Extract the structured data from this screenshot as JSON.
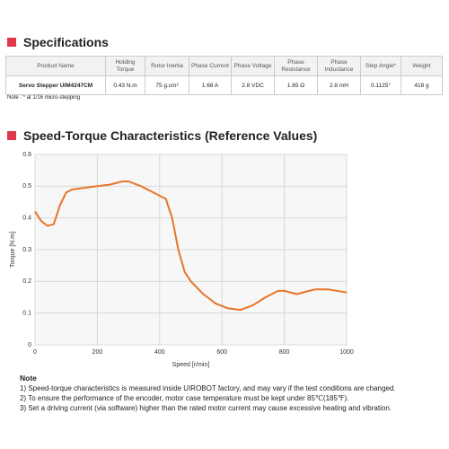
{
  "spec_title": "Specifications",
  "table": {
    "header": [
      "Product Name",
      "Holding Torque",
      "Rotor Inertia",
      "Phase Current",
      "Phase Voltage",
      "Phase Resistance",
      "Phase Inductance",
      "Step Angle*",
      "Weight"
    ],
    "rows": [
      [
        "Servo Stepper UIM4247CM",
        "0.43 N.m",
        "75 g.cm²",
        "1.68 A",
        "2.8 VDC",
        "1.65 Ω",
        "2.8 mH",
        "0.1125°",
        "418 g"
      ]
    ]
  },
  "table_note": "Note : * at 1/16 micro-stepping",
  "chart_section_title": "Speed-Torque Characteristics (Reference Values)",
  "chart_data": {
    "type": "line",
    "x_label": "Speed [r/min]",
    "y_label": "Torque [N.m]",
    "x": [
      0,
      20,
      40,
      60,
      80,
      100,
      120,
      160,
      200,
      240,
      280,
      300,
      340,
      380,
      420,
      440,
      460,
      480,
      500,
      540,
      580,
      620,
      660,
      700,
      740,
      780,
      800,
      840,
      880,
      900,
      940,
      1000
    ],
    "values": [
      0.42,
      0.39,
      0.375,
      0.38,
      0.44,
      0.48,
      0.49,
      0.495,
      0.5,
      0.505,
      0.515,
      0.515,
      0.5,
      0.48,
      0.46,
      0.4,
      0.3,
      0.23,
      0.2,
      0.16,
      0.13,
      0.115,
      0.11,
      0.125,
      0.15,
      0.17,
      0.17,
      0.16,
      0.17,
      0.175,
      0.175,
      0.165
    ],
    "color": "#e8742a",
    "xlim": [
      0,
      1000
    ],
    "xticks": [
      0,
      200,
      400,
      600,
      800,
      1000
    ],
    "ylim": [
      0,
      0.6
    ],
    "yticks": [
      0,
      0.1,
      0.2,
      0.3,
      0.4,
      0.5,
      0.6
    ],
    "grid": true
  },
  "notes": {
    "title": "Note",
    "items": [
      "1)  Speed-torque characteristics is measured inside UIROBOT factory, and may vary if the test conditions are changed.",
      "2)  To ensure the performance of the encoder, motor case temperature must be kept under 85℃(185℉).",
      "3)  Set a driving current (via software) higher than the rated motor current may cause excessive heating and vibration."
    ]
  }
}
